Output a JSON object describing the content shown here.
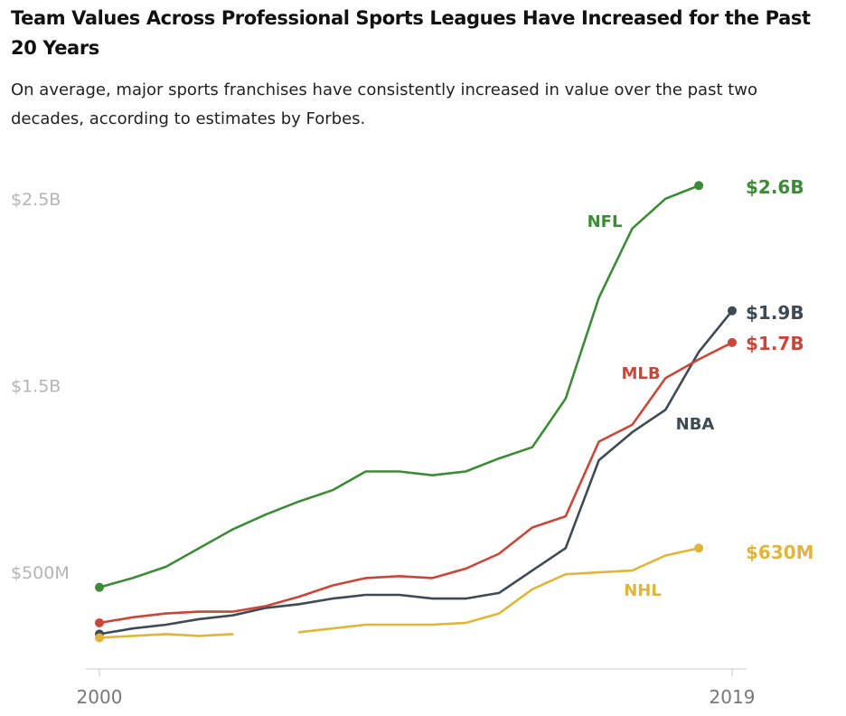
{
  "header": {
    "title": "Team Values Across Professional Sports Leagues Have Increased for the Past 20 Years",
    "subtitle": "On average, major sports franchises have consistently increased in value over the past two decades, according to estimates by Forbes."
  },
  "chart_data": {
    "type": "line",
    "title": "Team Values Across Professional Sports Leagues Have Increased for the Past 20 Years",
    "subtitle": "On average, major sports franchises have consistently increased in value over the past two decades, according to estimates by Forbes.",
    "xlabel": "",
    "ylabel": "",
    "x": [
      2000,
      2001,
      2002,
      2003,
      2004,
      2005,
      2006,
      2007,
      2008,
      2009,
      2010,
      2011,
      2012,
      2013,
      2014,
      2015,
      2016,
      2017,
      2018,
      2019
    ],
    "x_ticks": [
      "2000",
      "2019"
    ],
    "y_ticks": [
      {
        "value": 0.5,
        "label": "$500M"
      },
      {
        "value": 1.5,
        "label": "$1.5B"
      },
      {
        "value": 2.5,
        "label": "$2.5B"
      }
    ],
    "ylim": [
      0,
      2.6
    ],
    "y_unit": "billions of US dollars",
    "grid": false,
    "legend": "direct labels at line ends",
    "series": [
      {
        "name": "NFL",
        "color": "#3d8b37",
        "end_label": "$2.6B",
        "values": [
          0.42,
          0.47,
          0.53,
          0.63,
          0.73,
          0.81,
          0.88,
          0.94,
          1.04,
          1.04,
          1.02,
          1.04,
          1.11,
          1.17,
          1.43,
          1.97,
          2.34,
          2.5,
          2.57,
          null
        ]
      },
      {
        "name": "NBA",
        "color": "#3f4a52",
        "end_label": "$1.9B",
        "values": [
          0.17,
          0.2,
          0.22,
          0.25,
          0.27,
          0.31,
          0.33,
          0.36,
          0.38,
          0.38,
          0.36,
          0.36,
          0.39,
          0.51,
          0.63,
          1.1,
          1.25,
          1.37,
          1.68,
          1.9
        ]
      },
      {
        "name": "MLB",
        "color": "#c8473a",
        "end_label": "$1.7B",
        "values": [
          0.23,
          0.26,
          0.28,
          0.29,
          0.29,
          0.32,
          0.37,
          0.43,
          0.47,
          0.48,
          0.47,
          0.52,
          0.6,
          0.74,
          0.8,
          1.2,
          1.29,
          1.54,
          1.64,
          1.73
        ]
      },
      {
        "name": "NHL",
        "color": "#e0b53b",
        "end_label": "$630M",
        "values": [
          0.15,
          0.16,
          0.17,
          0.16,
          0.17,
          null,
          0.18,
          0.2,
          0.22,
          0.22,
          0.22,
          0.23,
          0.28,
          0.41,
          0.49,
          0.5,
          0.51,
          0.59,
          0.63,
          null
        ]
      }
    ]
  }
}
